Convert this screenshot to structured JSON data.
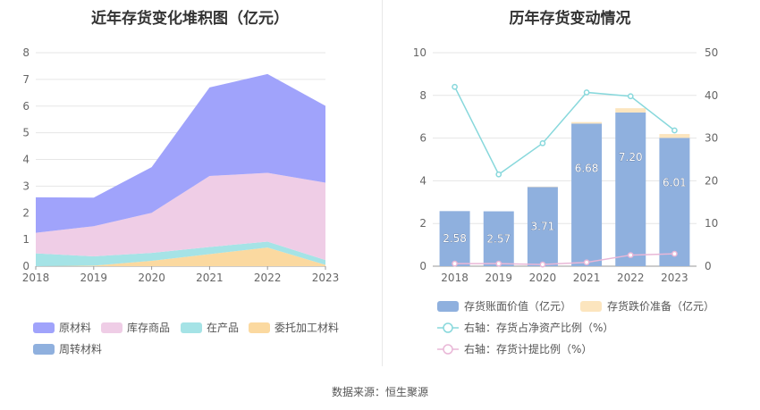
{
  "left_title": "近年存货变化堆积图（亿元）",
  "right_title": "历年存货变动情况",
  "footer": "数据来源：恒生聚源",
  "chart_data": [
    {
      "type": "area",
      "stacked": true,
      "title": "近年存货变化堆积图（亿元）",
      "x": [
        "2018",
        "2019",
        "2020",
        "2021",
        "2022",
        "2023"
      ],
      "ylim": [
        0,
        8
      ],
      "yticks": [
        0,
        1,
        2,
        3,
        4,
        5,
        6,
        7,
        8
      ],
      "grid": true,
      "legend_position": "bottom",
      "series": [
        {
          "name": "周转材料",
          "color": "#8fb0de",
          "values": [
            0.0,
            0.0,
            0.0,
            0.0,
            0.0,
            0.0
          ]
        },
        {
          "name": "委托加工材料",
          "color": "#fbd9a0",
          "values": [
            0.0,
            0.02,
            0.2,
            0.45,
            0.7,
            0.05
          ]
        },
        {
          "name": "在产品",
          "color": "#a5e3e6",
          "values": [
            0.48,
            0.35,
            0.3,
            0.27,
            0.22,
            0.18
          ]
        },
        {
          "name": "库存商品",
          "color": "#efcde6",
          "values": [
            0.77,
            1.13,
            1.5,
            2.66,
            2.58,
            2.9
          ]
        },
        {
          "name": "原材料",
          "color": "#a0a3fb",
          "values": [
            1.33,
            1.07,
            1.71,
            3.32,
            3.7,
            2.88
          ]
        }
      ],
      "legend_order": [
        "原材料",
        "库存商品",
        "在产品",
        "委托加工材料",
        "周转材料"
      ]
    },
    {
      "type": "bar",
      "title": "历年存货变动情况",
      "categories": [
        "2018",
        "2019",
        "2020",
        "2021",
        "2022",
        "2023"
      ],
      "ylim": [
        0,
        10
      ],
      "yticks": [
        0,
        2,
        4,
        6,
        8,
        10
      ],
      "y2lim": [
        0,
        50
      ],
      "y2ticks": [
        0,
        10,
        20,
        30,
        40,
        50
      ],
      "grid": true,
      "legend_position": "bottom",
      "series": [
        {
          "name": "存货账面价值（亿元）",
          "type": "bar",
          "axis": "left",
          "color": "#8fb0de",
          "values": [
            2.58,
            2.57,
            3.71,
            6.68,
            7.2,
            6.01
          ],
          "labels": [
            "2.58",
            "2.57",
            "3.71",
            "6.68",
            "7.20",
            "6.01"
          ]
        },
        {
          "name": "存货跌价准备（亿元）",
          "type": "bar",
          "axis": "left",
          "color": "#fce5be",
          "stacked": true,
          "values": [
            0.0,
            0.0,
            0.02,
            0.07,
            0.2,
            0.18
          ]
        },
        {
          "name": "右轴：存货占净资产比例（%）",
          "type": "line",
          "axis": "right",
          "color": "#88d8dc",
          "values": [
            42.0,
            21.5,
            28.8,
            40.7,
            39.8,
            31.8
          ]
        },
        {
          "name": "右轴：存货计提比例（%）",
          "type": "line",
          "axis": "right",
          "color": "#e9b7d7",
          "values": [
            0.6,
            0.6,
            0.4,
            0.9,
            2.6,
            2.9
          ]
        }
      ]
    }
  ]
}
